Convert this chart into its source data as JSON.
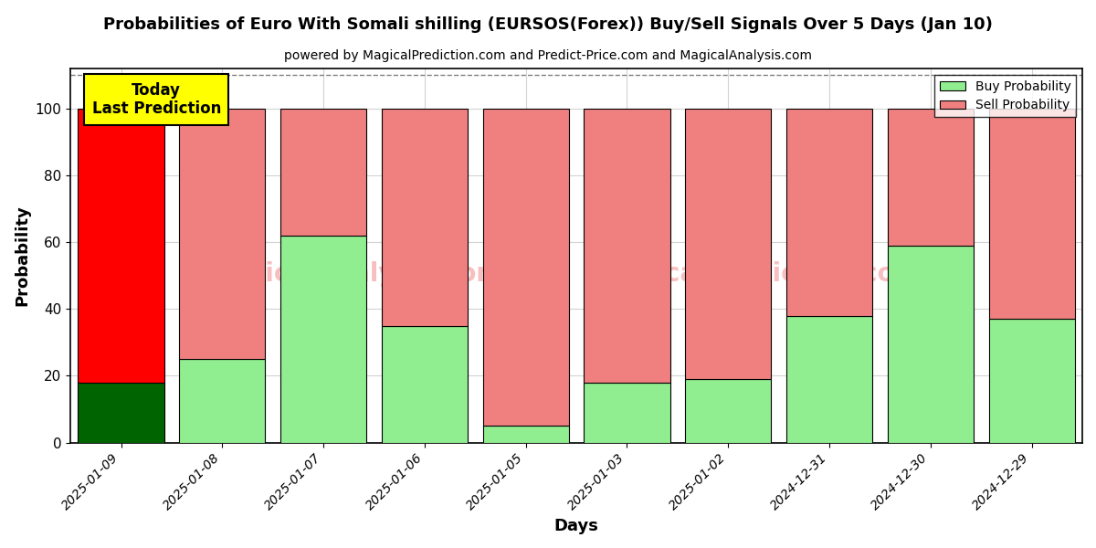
{
  "title": "Probabilities of Euro With Somali shilling (EURSOS(Forex)) Buy/Sell Signals Over 5 Days (Jan 10)",
  "subtitle": "powered by MagicalPrediction.com and Predict-Price.com and MagicalAnalysis.com",
  "xlabel": "Days",
  "ylabel": "Probability",
  "categories": [
    "2025-01-09",
    "2025-01-08",
    "2025-01-07",
    "2025-01-06",
    "2025-01-05",
    "2025-01-03",
    "2025-01-02",
    "2024-12-31",
    "2024-12-30",
    "2024-12-29"
  ],
  "buy_values": [
    18,
    25,
    62,
    35,
    5,
    18,
    19,
    38,
    59,
    37
  ],
  "sell_values": [
    82,
    75,
    38,
    65,
    95,
    82,
    81,
    62,
    41,
    63
  ],
  "today_buy_color": "#006400",
  "today_sell_color": "#ff0000",
  "buy_color": "#90EE90",
  "sell_color": "#F08080",
  "today_label_bg": "#ffff00",
  "today_label_text": "Today\nLast Prediction",
  "legend_buy": "Buy Probability",
  "legend_sell": "Sell Probability",
  "ylim": [
    0,
    112
  ],
  "yticks": [
    0,
    20,
    40,
    60,
    80,
    100
  ],
  "dashed_line_y": 110,
  "figsize": [
    12,
    6
  ],
  "dpi": 100
}
